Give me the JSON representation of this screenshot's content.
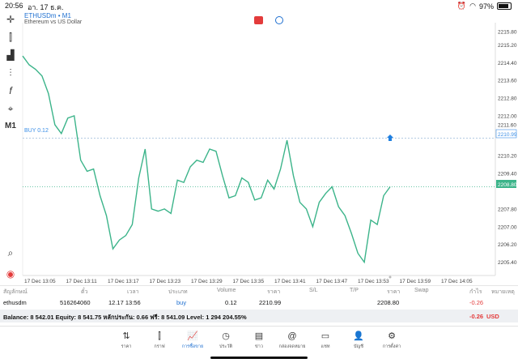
{
  "status": {
    "time": "20:56",
    "date": "อา. 17 ธ.ค.",
    "battery": "97%"
  },
  "chart": {
    "symbol": "ETHUSDm • M1",
    "description": "Ethereum vs US Dollar",
    "buy_line_label": "BUY 0.12",
    "buy_price_tag": "2210.99",
    "bid_price_tag": "2208.80",
    "timeframe_tool": "M1",
    "line_color": "#3cb48a"
  },
  "chart_data": {
    "type": "line",
    "title": "",
    "xlabel": "",
    "ylabel": "",
    "ylim": [
      2204.8,
      2216.2
    ],
    "y_ticks": [
      "2215.80",
      "2215.20",
      "2214.40",
      "2213.60",
      "2212.80",
      "2212.00",
      "2211.60",
      "2210.99",
      "2210.20",
      "2209.40",
      "2208.80",
      "2207.80",
      "2207.00",
      "2206.20",
      "2205.40"
    ],
    "x_ticks": [
      "17 Dec 13:05",
      "17 Dec 13:11",
      "17 Dec 13:17",
      "17 Dec 13:23",
      "17 Dec 13:29",
      "17 Dec 13:35",
      "17 Dec 13:41",
      "17 Dec 13:47",
      "17 Dec 13:53",
      "17 Dec 13:59",
      "17 Dec 14:05"
    ],
    "series": [
      {
        "values": [
          2214.7,
          2214.3,
          2214.1,
          2213.8,
          2213.0,
          2211.6,
          2211.2,
          2211.9,
          2212.0,
          2210.0,
          2209.5,
          2209.6,
          2208.4,
          2207.5,
          2206.0,
          2206.4,
          2206.6,
          2207.1,
          2209.2,
          2210.5,
          2207.8,
          2207.7,
          2207.8,
          2207.6,
          2209.1,
          2209.0,
          2209.7,
          2210.0,
          2209.9,
          2210.5,
          2210.4,
          2209.3,
          2208.3,
          2208.4,
          2209.2,
          2209.0,
          2208.2,
          2208.3,
          2209.1,
          2208.7,
          2209.6,
          2210.9,
          2209.3,
          2208.1,
          2207.8,
          2207.0,
          2208.1,
          2208.5,
          2208.8,
          2207.9,
          2207.5,
          2206.7,
          2205.8,
          2205.4,
          2207.3,
          2207.1,
          2208.4,
          2208.8
        ]
      }
    ],
    "grid": false
  },
  "position_table": {
    "headers": [
      "สัญลักษณ์",
      "ตั๋ว",
      "เวลา",
      "ประเภท",
      "Volume",
      "ราคา",
      "S/L",
      "T/P",
      "ราคา",
      "Swap",
      "กำไร",
      "หมายเหตุ"
    ],
    "row": {
      "symbol": "ethusdm",
      "ticket": "516264060",
      "time": "12.17 13:56",
      "type": "buy",
      "volume": "0.12",
      "open_price": "2210.99",
      "current_price": "2208.80",
      "profit": "-0.26"
    }
  },
  "balance": {
    "text": "Balance: 8 542.01 Equity: 8 541.75 หลักประกัน: 0.66 ฟรี: 8 541.09 Level: 1 294 204.55%",
    "total": "-0.26",
    "currency": "USD"
  },
  "nav": {
    "items": [
      {
        "label": "ราคา",
        "icon": "quotes-icon"
      },
      {
        "label": "กราฟ",
        "icon": "chart-icon"
      },
      {
        "label": "การซื้อขาย",
        "icon": "trade-icon"
      },
      {
        "label": "ประวัติ",
        "icon": "history-icon"
      },
      {
        "label": "ข่าว",
        "icon": "news-icon"
      },
      {
        "label": "กล่องจดหมาย",
        "icon": "mail-icon"
      },
      {
        "label": "แชท",
        "icon": "chat-icon"
      },
      {
        "label": "บัญชี",
        "icon": "account-icon"
      },
      {
        "label": "การตั้งค่า",
        "icon": "settings-icon"
      }
    ]
  }
}
